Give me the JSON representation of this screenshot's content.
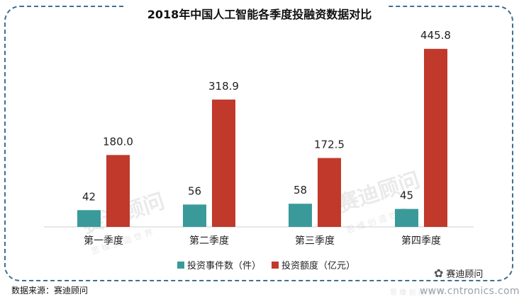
{
  "chart_data": {
    "type": "bar",
    "title": "2018年中国人工智能各季度投融资数据对比",
    "categories": [
      "第一季度",
      "第二季度",
      "第三季度",
      "第四季度"
    ],
    "series": [
      {
        "name": "投资事件数（件）",
        "values": [
          42,
          56,
          58,
          45
        ],
        "labels": [
          "42",
          "56",
          "58",
          "45"
        ],
        "color": "#3a9a9a"
      },
      {
        "name": "投资额度（亿元）",
        "values": [
          180.0,
          318.9,
          172.5,
          445.8
        ],
        "labels": [
          "180.0",
          "318.9",
          "172.5",
          "445.8"
        ],
        "color": "#c0392b"
      }
    ],
    "ylim": [
      0,
      500
    ],
    "grid": false,
    "legend_position": "bottom"
  },
  "footer": {
    "source": "数据来源：赛迪顾问",
    "brand": "赛迪顾问",
    "brand_icon": "wechat-icon",
    "site": "www.cntronics.com"
  },
  "watermark": {
    "main": "赛迪顾问",
    "sub": "思 维 创 造 世 界"
  }
}
